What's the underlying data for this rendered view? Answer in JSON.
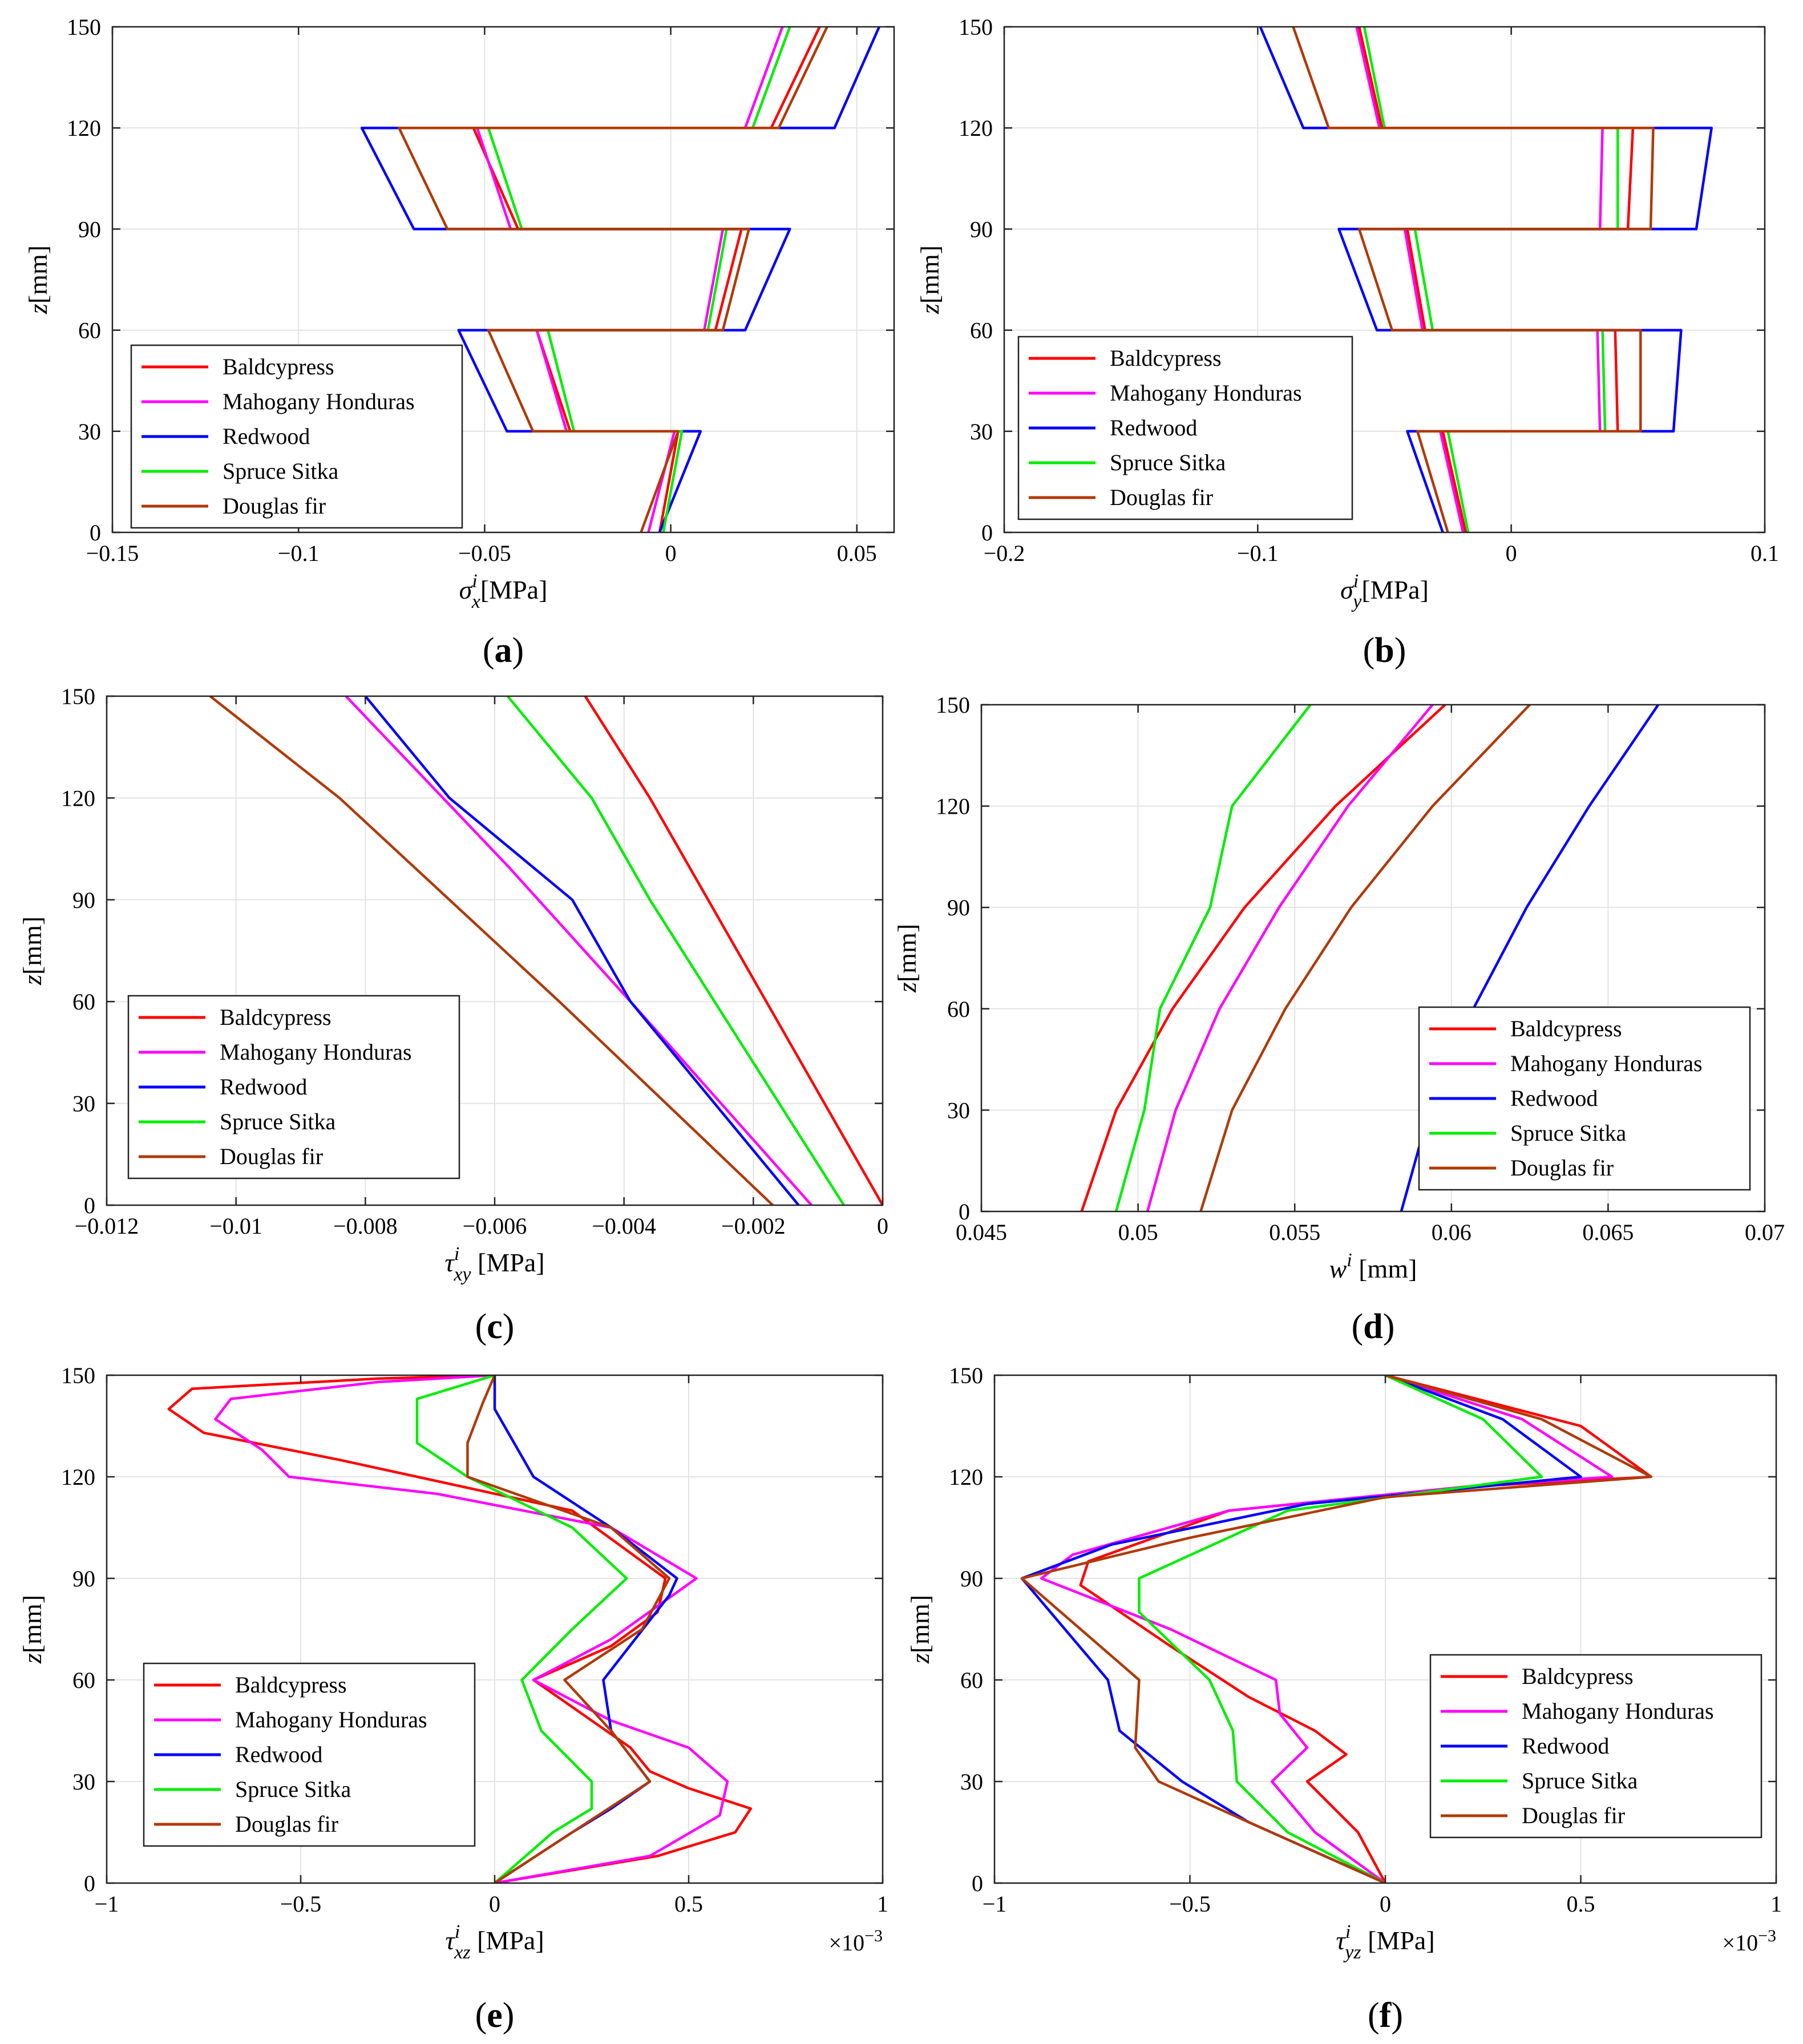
{
  "figure": {
    "legend_entries": [
      "Baldcypress",
      "Mahogany Honduras",
      "Redwood",
      "Spruce Sitka",
      "Douglas fir"
    ],
    "colors": {
      "Baldcypress": "#ff0000",
      "Mahogany Honduras": "#ff00ff",
      "Redwood": "#0000ff",
      "Spruce Sitka": "#00ee00",
      "Douglas fir": "#b03a08"
    }
  },
  "chart_data": [
    {
      "id": "a",
      "type": "line",
      "caption": "a",
      "xlabel": "σ",
      "xlabel_sub": "x",
      "xlabel_sup": "i",
      "xlabel_unit": "[MPa]",
      "ylabel": "z",
      "ylabel_unit": "[mm]",
      "xlim": [
        -0.15,
        0.06
      ],
      "ylim": [
        0,
        150
      ],
      "xticks": [
        -0.15,
        -0.1,
        -0.05,
        0,
        0.05
      ],
      "xtick_labels": [
        "−0.15",
        "−0.1",
        "−0.05",
        "0",
        "0.05"
      ],
      "yticks": [
        0,
        30,
        60,
        90,
        120,
        150
      ],
      "ytick_labels": [
        "0",
        "30",
        "60",
        "90",
        "120",
        "150"
      ],
      "multiplier": "",
      "legend_position": "lower-left",
      "series": [
        {
          "name": "Baldcypress",
          "x": [
            -0.003,
            0.002,
            -0.027,
            -0.036,
            0.012,
            0.019,
            -0.041,
            -0.053,
            0.027,
            0.04
          ],
          "y": [
            0,
            30,
            30,
            60,
            60,
            90,
            90,
            120,
            120,
            150
          ]
        },
        {
          "name": "Mahogany Honduras",
          "x": [
            -0.006,
            0.001,
            -0.028,
            -0.036,
            0.009,
            0.014,
            -0.043,
            -0.052,
            0.02,
            0.03
          ],
          "y": [
            0,
            30,
            30,
            60,
            60,
            90,
            90,
            120,
            120,
            150
          ]
        },
        {
          "name": "Redwood",
          "x": [
            -0.003,
            0.008,
            -0.044,
            -0.057,
            0.02,
            0.032,
            -0.069,
            -0.083,
            0.044,
            0.056
          ],
          "y": [
            0,
            30,
            30,
            60,
            60,
            90,
            90,
            120,
            120,
            150
          ]
        },
        {
          "name": "Spruce Sitka",
          "x": [
            -0.002,
            0.003,
            -0.026,
            -0.033,
            0.01,
            0.015,
            -0.04,
            -0.049,
            0.022,
            0.032
          ],
          "y": [
            0,
            30,
            30,
            60,
            60,
            90,
            90,
            120,
            120,
            150
          ]
        },
        {
          "name": "Douglas fir",
          "x": [
            -0.008,
            0.002,
            -0.037,
            -0.049,
            0.014,
            0.021,
            -0.06,
            -0.073,
            0.029,
            0.042
          ],
          "y": [
            0,
            30,
            30,
            60,
            60,
            90,
            90,
            120,
            120,
            150
          ]
        }
      ]
    },
    {
      "id": "b",
      "type": "line",
      "caption": "b",
      "xlabel": "σ",
      "xlabel_sub": "y",
      "xlabel_sup": "i",
      "xlabel_unit": "[MPa]",
      "ylabel": "z",
      "ylabel_unit": "[mm]",
      "xlim": [
        -0.2,
        0.1
      ],
      "ylim": [
        0,
        150
      ],
      "xticks": [
        -0.2,
        -0.1,
        0,
        0.1
      ],
      "xtick_labels": [
        "−0.2",
        "−0.1",
        "0",
        "0.1"
      ],
      "yticks": [
        0,
        30,
        60,
        90,
        120,
        150
      ],
      "ytick_labels": [
        "0",
        "30",
        "60",
        "90",
        "120",
        "150"
      ],
      "multiplier": "",
      "legend_position": "lower-left",
      "series": [
        {
          "name": "Baldcypress",
          "x": [
            -0.018,
            -0.027,
            0.042,
            0.041,
            -0.034,
            -0.041,
            0.046,
            0.048,
            -0.051,
            -0.06
          ],
          "y": [
            0,
            30,
            30,
            60,
            60,
            90,
            90,
            120,
            120,
            150
          ]
        },
        {
          "name": "Mahogany Honduras",
          "x": [
            -0.019,
            -0.028,
            0.035,
            0.034,
            -0.035,
            -0.042,
            0.035,
            0.036,
            -0.052,
            -0.061
          ],
          "y": [
            0,
            30,
            30,
            60,
            60,
            90,
            90,
            120,
            120,
            150
          ]
        },
        {
          "name": "Redwood",
          "x": [
            -0.027,
            -0.041,
            0.064,
            0.067,
            -0.053,
            -0.068,
            0.073,
            0.079,
            -0.082,
            -0.099
          ],
          "y": [
            0,
            30,
            30,
            60,
            60,
            90,
            90,
            120,
            120,
            150
          ]
        },
        {
          "name": "Spruce Sitka",
          "x": [
            -0.017,
            -0.025,
            0.037,
            0.036,
            -0.031,
            -0.038,
            0.042,
            0.042,
            -0.05,
            -0.058
          ],
          "y": [
            0,
            30,
            30,
            60,
            60,
            90,
            90,
            120,
            120,
            150
          ]
        },
        {
          "name": "Douglas fir",
          "x": [
            -0.025,
            -0.037,
            0.051,
            0.051,
            -0.047,
            -0.06,
            0.055,
            0.056,
            -0.072,
            -0.086
          ],
          "y": [
            0,
            30,
            30,
            60,
            60,
            90,
            90,
            120,
            120,
            150
          ]
        }
      ]
    },
    {
      "id": "c",
      "type": "line",
      "caption": "c",
      "xlabel": "τ",
      "xlabel_sub": "xy",
      "xlabel_sup": "i",
      "xlabel_unit": " [MPa]",
      "ylabel": "z",
      "ylabel_unit": "[mm]",
      "xlim": [
        -0.012,
        0
      ],
      "ylim": [
        0,
        150
      ],
      "xticks": [
        -0.012,
        -0.01,
        -0.008,
        -0.006,
        -0.004,
        -0.002,
        0
      ],
      "xtick_labels": [
        "−0.012",
        "−0.01",
        "−0.008",
        "−0.006",
        "−0.004",
        "−0.002",
        "0"
      ],
      "yticks": [
        0,
        30,
        60,
        90,
        120,
        150
      ],
      "ytick_labels": [
        "0",
        "30",
        "60",
        "90",
        "120",
        "150"
      ],
      "multiplier": "",
      "legend_position": "lower-left",
      "series": [
        {
          "name": "Baldcypress",
          "x": [
            0,
            -0.0018,
            -0.0027,
            -0.0036,
            -0.0046
          ],
          "y": [
            0,
            60,
            90,
            120,
            150
          ]
        },
        {
          "name": "Mahogany Honduras",
          "x": [
            -0.0011,
            -0.0039,
            -0.0058,
            -0.0083
          ],
          "y": [
            0,
            60,
            100,
            150
          ]
        },
        {
          "name": "Redwood",
          "x": [
            -0.0013,
            -0.0039,
            -0.0048,
            -0.0067,
            -0.008
          ],
          "y": [
            0,
            60,
            90,
            120,
            150
          ]
        },
        {
          "name": "Spruce Sitka",
          "x": [
            -0.0006,
            -0.0026,
            -0.0036,
            -0.0045,
            -0.0058
          ],
          "y": [
            0,
            60,
            90,
            120,
            150
          ]
        },
        {
          "name": "Douglas fir",
          "x": [
            -0.0017,
            -0.005,
            -0.0067,
            -0.0084,
            -0.0104
          ],
          "y": [
            0,
            60,
            90,
            120,
            150
          ]
        }
      ]
    },
    {
      "id": "d",
      "type": "line",
      "caption": "d",
      "xlabel": "w",
      "xlabel_sub": "",
      "xlabel_sup": "i",
      "xlabel_unit": " [mm]",
      "ylabel": "z",
      "ylabel_unit": "[mm]",
      "xlim": [
        0.045,
        0.07
      ],
      "ylim": [
        0,
        150
      ],
      "xticks": [
        0.045,
        0.05,
        0.055,
        0.06,
        0.065,
        0.07
      ],
      "xtick_labels": [
        "0.045",
        "0.05",
        "0.055",
        "0.06",
        "0.065",
        "0.07"
      ],
      "yticks": [
        0,
        30,
        60,
        90,
        120,
        150
      ],
      "ytick_labels": [
        "0",
        "30",
        "60",
        "90",
        "120",
        "150"
      ],
      "multiplier": "",
      "legend_position": "lower-right",
      "series": [
        {
          "name": "Baldcypress",
          "x": [
            0.0482,
            0.0493,
            0.0511,
            0.0534,
            0.0563,
            0.0598
          ],
          "y": [
            0,
            30,
            60,
            90,
            120,
            150
          ]
        },
        {
          "name": "Mahogany Honduras",
          "x": [
            0.0503,
            0.0512,
            0.0526,
            0.0545,
            0.0567,
            0.0594
          ],
          "y": [
            0,
            30,
            60,
            90,
            120,
            150
          ]
        },
        {
          "name": "Redwood",
          "x": [
            0.0584,
            0.0593,
            0.0607,
            0.0624,
            0.0644,
            0.0666
          ],
          "y": [
            0,
            30,
            60,
            90,
            120,
            150
          ]
        },
        {
          "name": "Spruce Sitka",
          "x": [
            0.0493,
            0.0502,
            0.0507,
            0.0523,
            0.053,
            0.0555
          ],
          "y": [
            0,
            30,
            60,
            90,
            120,
            150
          ]
        },
        {
          "name": "Douglas fir",
          "x": [
            0.052,
            0.053,
            0.0547,
            0.0568,
            0.0594,
            0.0625
          ],
          "y": [
            0,
            30,
            60,
            90,
            120,
            150
          ]
        }
      ]
    },
    {
      "id": "e",
      "type": "line",
      "caption": "e",
      "xlabel": "τ",
      "xlabel_sub": "xz",
      "xlabel_sup": "i",
      "xlabel_unit": " [MPa]",
      "ylabel": "z",
      "ylabel_unit": "[mm]",
      "xlim": [
        -1,
        1
      ],
      "ylim": [
        0,
        150
      ],
      "xticks": [
        -1,
        -0.5,
        0,
        0.5,
        1
      ],
      "xtick_labels": [
        "−1",
        "−0.5",
        "0",
        "0.5",
        "1"
      ],
      "yticks": [
        0,
        30,
        60,
        90,
        120,
        150
      ],
      "ytick_labels": [
        "0",
        "30",
        "60",
        "90",
        "120",
        "150"
      ],
      "multiplier": "×10−3",
      "legend_position": "lower-left",
      "series": [
        {
          "name": "Baldcypress",
          "x": [
            0,
            0.42,
            0.62,
            0.66,
            0.5,
            0.4,
            0.35,
            0.1,
            0.3,
            0.42,
            0.44,
            0.2,
            -0.4,
            -0.75,
            -0.84,
            -0.78,
            -0.3,
            0
          ],
          "y": [
            0,
            8,
            15,
            22,
            28,
            33,
            40,
            60,
            70,
            80,
            90,
            110,
            125,
            133,
            140,
            146,
            149,
            150
          ]
        },
        {
          "name": "Mahogany Honduras",
          "x": [
            0,
            0.4,
            0.58,
            0.6,
            0.5,
            0.3,
            0.1,
            0.3,
            0.52,
            0.3,
            -0.15,
            -0.53,
            -0.6,
            -0.72,
            -0.68,
            -0.3,
            0
          ],
          "y": [
            0,
            8,
            20,
            30,
            40,
            48,
            60,
            72,
            90,
            105,
            115,
            120,
            128,
            137,
            143,
            148,
            150
          ]
        },
        {
          "name": "Redwood",
          "x": [
            0,
            0.2,
            0.3,
            0.4,
            0.3,
            0.28,
            0.45,
            0.47,
            0.3,
            0.1,
            0,
            0
          ],
          "y": [
            0,
            15,
            22,
            30,
            45,
            60,
            85,
            90,
            105,
            120,
            140,
            150
          ]
        },
        {
          "name": "Spruce Sitka",
          "x": [
            0,
            0.15,
            0.25,
            0.25,
            0.12,
            0.07,
            0.2,
            0.34,
            0.2,
            -0.07,
            -0.2,
            -0.2,
            0
          ],
          "y": [
            0,
            15,
            22,
            30,
            45,
            60,
            75,
            90,
            105,
            120,
            130,
            143,
            150
          ]
        },
        {
          "name": "Douglas fir",
          "x": [
            0,
            0.2,
            0.4,
            0.3,
            0.18,
            0.38,
            0.45,
            0.3,
            -0.07,
            -0.07,
            -0.03,
            0
          ],
          "y": [
            0,
            15,
            30,
            45,
            60,
            75,
            90,
            105,
            120,
            130,
            142,
            150
          ]
        }
      ]
    },
    {
      "id": "f",
      "type": "line",
      "caption": "f",
      "xlabel": "τ",
      "xlabel_sub": "yz",
      "xlabel_sup": "i",
      "xlabel_unit": " [MPa]",
      "ylabel": "z",
      "ylabel_unit": "[mm]",
      "xlim": [
        -1,
        1
      ],
      "ylim": [
        0,
        150
      ],
      "xticks": [
        -1,
        -0.5,
        0,
        0.5,
        1
      ],
      "xtick_labels": [
        "−1",
        "−0.5",
        "0",
        "0.5",
        "1"
      ],
      "yticks": [
        0,
        30,
        60,
        90,
        120,
        150
      ],
      "ytick_labels": [
        "0",
        "30",
        "60",
        "90",
        "120",
        "150"
      ],
      "multiplier": "×10−3",
      "legend_position": "lower-right",
      "series": [
        {
          "name": "Baldcypress",
          "x": [
            0,
            -0.07,
            -0.2,
            -0.1,
            -0.18,
            -0.35,
            -0.55,
            -0.78,
            -0.76,
            -0.4,
            0.2,
            0.68,
            0.5,
            0
          ],
          "y": [
            0,
            15,
            30,
            38,
            45,
            55,
            70,
            88,
            95,
            110,
            117,
            120,
            135,
            150
          ]
        },
        {
          "name": "Mahogany Honduras",
          "x": [
            0,
            -0.18,
            -0.29,
            -0.2,
            -0.27,
            -0.28,
            -0.55,
            -0.88,
            -0.8,
            -0.4,
            0.2,
            0.58,
            0.35,
            0
          ],
          "y": [
            0,
            15,
            30,
            40,
            50,
            60,
            75,
            90,
            97,
            110,
            117,
            120,
            137,
            150
          ]
        },
        {
          "name": "Redwood",
          "x": [
            0,
            -0.35,
            -0.52,
            -0.68,
            -0.71,
            -0.93,
            -0.7,
            -0.2,
            0.5,
            0.3,
            0
          ],
          "y": [
            0,
            18,
            30,
            45,
            60,
            90,
            100,
            112,
            120,
            137,
            150
          ]
        },
        {
          "name": "Spruce Sitka",
          "x": [
            0,
            -0.25,
            -0.38,
            -0.39,
            -0.45,
            -0.63,
            -0.63,
            -0.25,
            0.4,
            0.25,
            0
          ],
          "y": [
            0,
            15,
            30,
            45,
            60,
            80,
            90,
            110,
            120,
            137,
            150
          ]
        },
        {
          "name": "Douglas fir",
          "x": [
            0,
            -0.35,
            -0.58,
            -0.64,
            -0.63,
            -0.93,
            -0.5,
            0,
            0.68,
            0.4,
            0
          ],
          "y": [
            0,
            18,
            30,
            40,
            60,
            90,
            102,
            114,
            120,
            137,
            150
          ]
        }
      ]
    }
  ]
}
